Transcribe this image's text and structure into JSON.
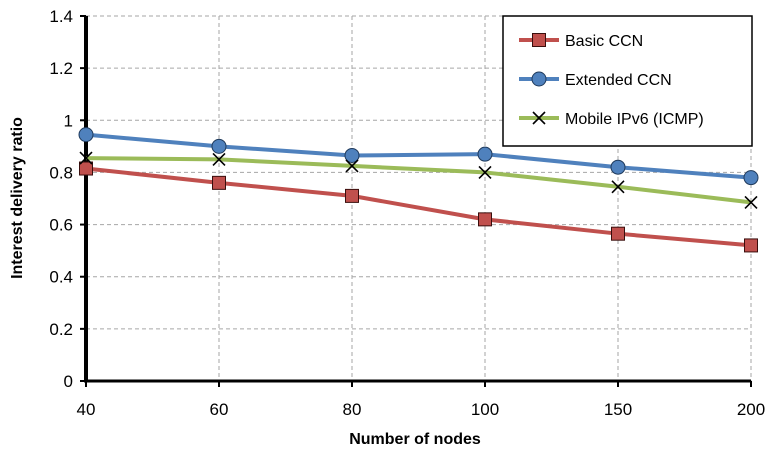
{
  "chart_data": {
    "type": "line",
    "categories": [
      "40",
      "60",
      "80",
      "100",
      "150",
      "200"
    ],
    "xlabel": "Number of nodes",
    "ylabel": "Interest delivery ratio",
    "ylim": [
      0,
      1.4
    ],
    "yticks": [
      "0",
      "0.2",
      "0.4",
      "0.6",
      "0.8",
      "1",
      "1.2",
      "1.4"
    ],
    "grid": true,
    "legend_position": "top-right",
    "series": [
      {
        "name": "Basic CCN",
        "values": [
          0.815,
          0.76,
          0.71,
          0.62,
          0.565,
          0.52
        ],
        "color": "#c0504d",
        "marker": "square"
      },
      {
        "name": "Extended CCN",
        "values": [
          0.945,
          0.9,
          0.865,
          0.87,
          0.82,
          0.78
        ],
        "color": "#4f81bd",
        "marker": "circle"
      },
      {
        "name": "Mobile IPv6 (ICMP)",
        "values": [
          0.855,
          0.85,
          0.825,
          0.8,
          0.745,
          0.685
        ],
        "color": "#9bbb59",
        "marker": "x"
      }
    ]
  }
}
